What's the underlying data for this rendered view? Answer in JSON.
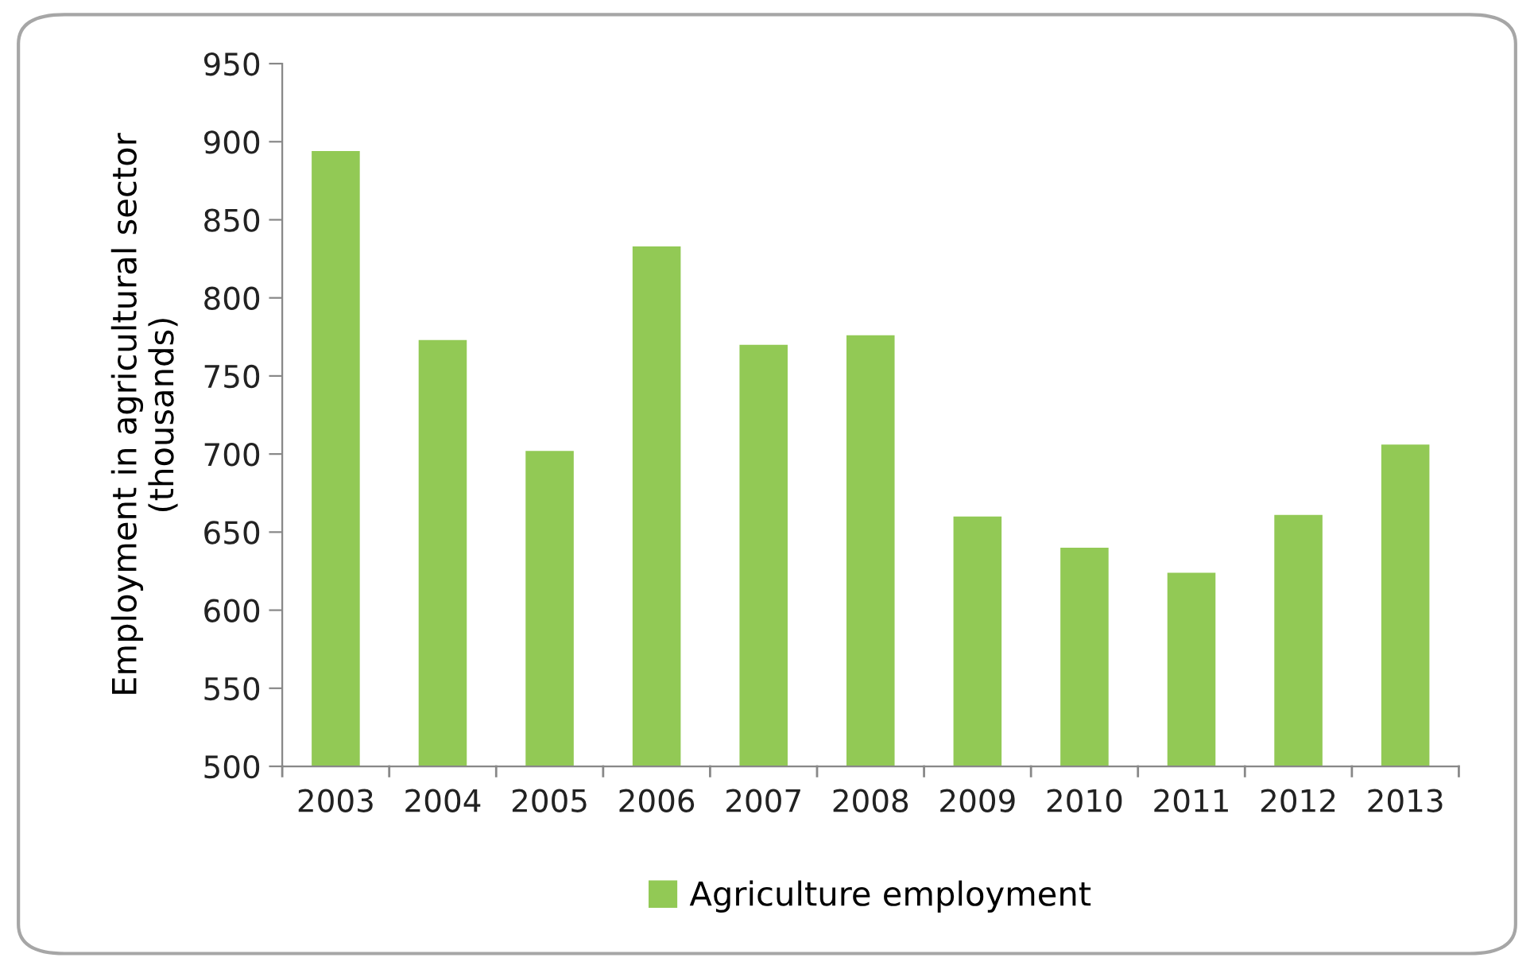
{
  "chart_data": {
    "type": "bar",
    "ylabel": "Employment in agricultural sector\n(thousands)",
    "categories": [
      "2003",
      "2004",
      "2005",
      "2006",
      "2007",
      "2008",
      "2009",
      "2010",
      "2011",
      "2012",
      "2013"
    ],
    "series": [
      {
        "name": "Agriculture employment",
        "color": "#92c955",
        "values": [
          894,
          773,
          702,
          833,
          770,
          776,
          660,
          640,
          624,
          661,
          706
        ]
      }
    ],
    "ylim": [
      500,
      950
    ],
    "yticks": [
      500,
      550,
      600,
      650,
      700,
      750,
      800,
      850,
      900,
      950
    ],
    "grid": false,
    "legend": "bottom"
  }
}
